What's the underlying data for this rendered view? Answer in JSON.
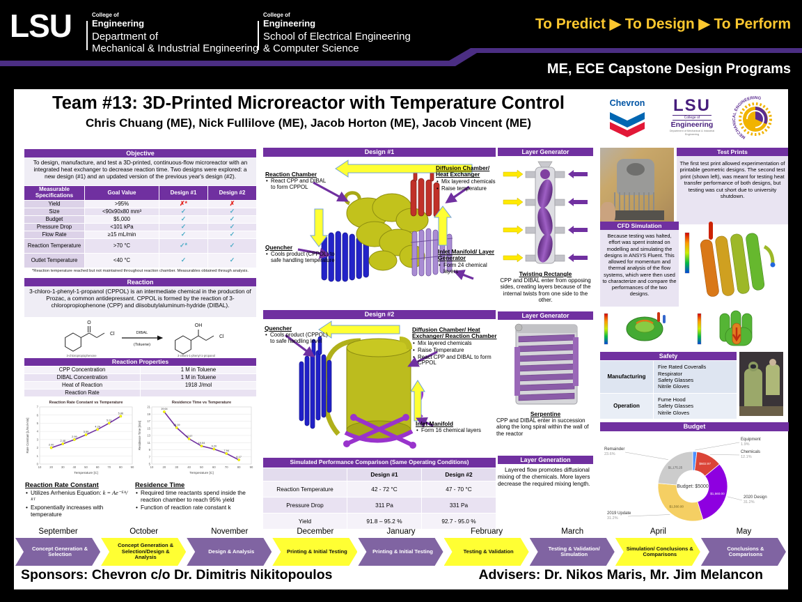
{
  "header": {
    "logo": "LSU",
    "unit1": {
      "a": "College of",
      "b": "Engineering",
      "c": "Department of",
      "d": "Mechanical & Industrial Engineering"
    },
    "unit2": {
      "a": "College of",
      "b": "Engineering",
      "c": "School of Electrical Engineering",
      "d": "& Computer Science"
    },
    "motto": "To Predict ▶ To Design ▶ To Perform",
    "banner": "ME, ECE Capstone Design Programs"
  },
  "title": "Team #13: 3D-Printed Microreactor with Temperature Control",
  "authors": "Chris Chuang (ME), Nick Fullilove (ME), Jacob Horton (ME), Jacob Vincent (ME)",
  "objective": {
    "header": "Objective",
    "text": "To design, manufacture, and test a 3D-printed, continuous-flow microreactor with an integrated heat exchanger to decrease reaction time.  Two designs were explored: a new design (#1) and an updated version of the previous year's design (#2)."
  },
  "specs": {
    "headers": [
      "Measurable Specifications",
      "Goal Value",
      "Design #1",
      "Design #2"
    ],
    "rows": [
      {
        "name": "Yield",
        "goal": ">95%",
        "d1": "✗*",
        "d2": "✗"
      },
      {
        "name": "Size",
        "goal": "<90x90x80 mm³",
        "d1": "✓",
        "d2": "✓"
      },
      {
        "name": "Budget",
        "goal": "$5,000",
        "d1": "✓",
        "d2": "✓"
      },
      {
        "name": "Pressure Drop",
        "goal": "<101 kPa",
        "d1": "✓",
        "d2": "✓"
      },
      {
        "name": "Flow Rate",
        "goal": "≥15 mL/min",
        "d1": "✓",
        "d2": "✓"
      },
      {
        "name": "Reaction Temperature",
        "goal": ">70 °C",
        "d1": "✓*",
        "d2": "✓"
      },
      {
        "name": "Outlet Temperature",
        "goal": "<40 °C",
        "d1": "✓",
        "d2": "✓"
      }
    ],
    "footnote": "*Reaction temperature reached but not maintained throughout reaction chamber. Measurables obtained through analysis."
  },
  "reaction": {
    "header": "Reaction",
    "text": "3-chloro-1-phenyl-1-propanol (CPPOL) is an intermediate chemical in the production of Prozac, a common antidepressant. CPPOL is formed by the reaction of 3-chloropropiophenone (CPP) and diisobutylaluminum-hydride (DIBAL).",
    "scheme": {
      "reagent_top": "DIBAL",
      "reagent_bottom": "(Toluene)",
      "reactant_caption": "3-chloropropiophenone",
      "product_caption": "3-chloro-1-phenyl-1-propanol",
      "o": "O",
      "cl": "Cl",
      "oh": "OH"
    }
  },
  "properties": {
    "header": "Reaction Properties",
    "rows": [
      {
        "name": "CPP Concentration",
        "value": "1 M in Toluene"
      },
      {
        "name": "DIBAL Concentration",
        "value": "1 M in Toluene"
      },
      {
        "name": "Heat of Reaction",
        "value": "1918 J/mol"
      },
      {
        "name": "Reaction Rate",
        "value": ""
      }
    ]
  },
  "kinetics_notes": {
    "rate_heading": "Reaction Rate Constant",
    "rate_b1": "Utilizes Arrhenius Equation:",
    "rate_eq": "k = Ae⁻ᴱᴬ/ᴿᵀ",
    "rate_b2": "Exponentially increases with temperature",
    "res_heading": "Residence Time",
    "res_b1": "Required time reactants spend inside the reaction chamber to reach 95% yield",
    "res_b2": "Function of reaction rate constant k"
  },
  "design1": {
    "header": "Design #1",
    "reaction_chamber_title": "Reaction Chamber",
    "reaction_chamber_b1": "React CPP and DIBAL to form CPPOL",
    "diffusion_title": "Diffusion Chamber/ Heat Exchanger",
    "diffusion_b1": "Mix layered chemicals",
    "diffusion_b2": "Raise temperature",
    "quencher_title": "Quencher",
    "quencher_b1": "Cools product (CPPOL) to safe handling temperature",
    "inlet_title": "Inlet Manifold/ Layer Generator",
    "inlet_b1": "Form 24 chemical layers"
  },
  "design2": {
    "header": "Design #2",
    "quencher_title": "Quencher",
    "quencher_b1": "Cools product (CPPOL) to safe handling level",
    "diffusion_title": "Diffusion Chamber/ Heat Exchanger/ Reaction Chamber",
    "diffusion_b1": "Mix layered chemicals",
    "diffusion_b2": "Raise Temperature",
    "diffusion_b3": "React CPP and DIBAL to form CPPOL",
    "inlet_title": "Inlet Manifold",
    "inlet_b1": "Form 16 chemical layers"
  },
  "performance": {
    "header": "Simulated Performance Comparison (Same Operating Conditions)",
    "col_headers": [
      "",
      "Design #1",
      "Design #2"
    ],
    "rows": [
      {
        "name": "Reaction Temperature",
        "d1": "42 - 72 °C",
        "d2": "47 - 70 °C"
      },
      {
        "name": "Pressure Drop",
        "d1": "311 Pa",
        "d2": "331 Pa"
      },
      {
        "name": "Yield",
        "d1": "91.8 – 95.2 %",
        "d2": "92.7 - 95.0 %"
      }
    ]
  },
  "layer_gen1": {
    "header": "Layer Generator",
    "caption": "Twisting Rectangle",
    "text": "CPP and DIBAL enter from opposing sides, creating layers because of the internal twists from one side to the other."
  },
  "layer_gen2": {
    "header": "Layer Generator",
    "caption": "Serpentine",
    "text": "CPP and DIBAL enter in succession along the long spiral within the wall of the reactor"
  },
  "layer_generation": {
    "header": "Layer Generation",
    "text": "Layered flow promotes diffusional mixing of the chemicals. More layers decrease the required mixing length."
  },
  "logos": {
    "chevron": "Chevron",
    "lsu": "LSU",
    "lsu_college": "College of",
    "lsu_engineering": "Engineering",
    "lsu_dept": "Department of Mechanical & Industrial Engineering",
    "seal": "MECHANICAL  ENGINEERING"
  },
  "test_prints": {
    "header": "Test Prints",
    "text": "The first test print allowed experimentation of printable geometric designs. The second test print (shown left), was meant for testing heat transfer performance of both designs, but testing was cut short due to university shutdown."
  },
  "cfd": {
    "header": "CFD Simulation",
    "text": "Because testing was halted, effort was spent instead on modelling and simulating the designs in ANSYS Fluent. This allowed for momentum and thermal analysis of the flow systems, which were then used to characterize and compare the performances of the two designs."
  },
  "safety": {
    "header": "Safety",
    "rows": [
      {
        "name": "Manufacturing",
        "items": [
          "Fire Rated Coveralls",
          "Respirator",
          "Safety Glasses",
          "Nitrile Gloves"
        ]
      },
      {
        "name": "Operation",
        "items": [
          "Fume Hood",
          "Safety Glasses",
          "Nitrile Gloves"
        ]
      }
    ]
  },
  "budget": {
    "header": "Budget"
  },
  "timeline": {
    "months": [
      "September",
      "October",
      "November",
      "December",
      "January",
      "February",
      "March",
      "April",
      "May"
    ],
    "phases": [
      {
        "label": "Concept Generation & Selection",
        "color": "purple"
      },
      {
        "label": "Concept Generation & Selection/Design & Analysis",
        "color": "yellow"
      },
      {
        "label": "Design & Analysis",
        "color": "purple"
      },
      {
        "label": "Printing & Initial Testing",
        "color": "yellow"
      },
      {
        "label": "Printing & Initial Testing",
        "color": "purple"
      },
      {
        "label": "Testing & Validation",
        "color": "yellow"
      },
      {
        "label": "Testing & Validation/ Simulation",
        "color": "purple"
      },
      {
        "label": "Simulation/ Conclusions & Comparisons",
        "color": "yellow"
      },
      {
        "label": "Conclusions & Comparisons",
        "color": "purple"
      }
    ]
  },
  "footer": {
    "sponsors": "Sponsors: Chevron c/o Dr. Dimitris Nikitopoulos",
    "advisers": "Advisers: Dr. Nikos Maris, Mr. Jim Melancon"
  },
  "chart_data": [
    {
      "type": "line",
      "title": "Reaction Rate Constant vs Temperature",
      "xlabel": "Temperature [C]",
      "ylabel": "Rate Constant [L/mol-min]",
      "x": [
        20,
        30,
        40,
        50,
        60,
        70,
        80
      ],
      "values": [
        2.0,
        2.48,
        2.99,
        3.59,
        4.24,
        5.01,
        5.86
      ],
      "xlim": [
        10,
        90
      ],
      "ylim": [
        0,
        7
      ],
      "xtick": 10,
      "ytick": 1,
      "grid": true,
      "legend": false,
      "line_color": "#7030A0",
      "marker_color": "#FFFF00"
    },
    {
      "type": "line",
      "title": "Residence Time vs Temperature",
      "xlabel": "Temperature [C]",
      "ylabel": "Residence Time [min]",
      "x": [
        20,
        30,
        40,
        50,
        60,
        70,
        80
      ],
      "values": [
        19.64,
        15.19,
        12.07,
        10.04,
        9.2,
        7.94,
        6.17
      ],
      "xlim": [
        10,
        90
      ],
      "ylim": [
        5,
        21
      ],
      "xtick": 10,
      "ytick": 2,
      "grid": true,
      "legend": false,
      "line_color": "#7030A0",
      "marker_color": "#FFFF00"
    },
    {
      "type": "pie",
      "title": "Budget",
      "center_label": "Budget: $5000",
      "slices": [
        {
          "label": "Equipment",
          "pct": 1.9,
          "pct_label": "1.9%",
          "amount": "",
          "color": "#4D90FE",
          "text_color": "#ffffff"
        },
        {
          "label": "Chemicals",
          "pct": 12.1,
          "pct_label": "12.1%",
          "amount": "$602.97",
          "color": "#DB4437",
          "text_color": "#ffffff"
        },
        {
          "label": "2020 Design",
          "pct": 31.2,
          "pct_label": "31.2%",
          "amount": "$1,560.00",
          "color": "#8E00E0",
          "text_color": "#ffffff"
        },
        {
          "label": "2019 Update",
          "pct": 31.2,
          "pct_label": "31.2%",
          "amount": "$1,560.00",
          "color": "#F5CF63",
          "text_color": "#6B5B1E"
        },
        {
          "label": "Remainder",
          "pct": 23.6,
          "pct_label": "23.6%",
          "amount": "$1,175.25",
          "color": "#CCCCCC",
          "text_color": "#555555"
        }
      ]
    }
  ]
}
